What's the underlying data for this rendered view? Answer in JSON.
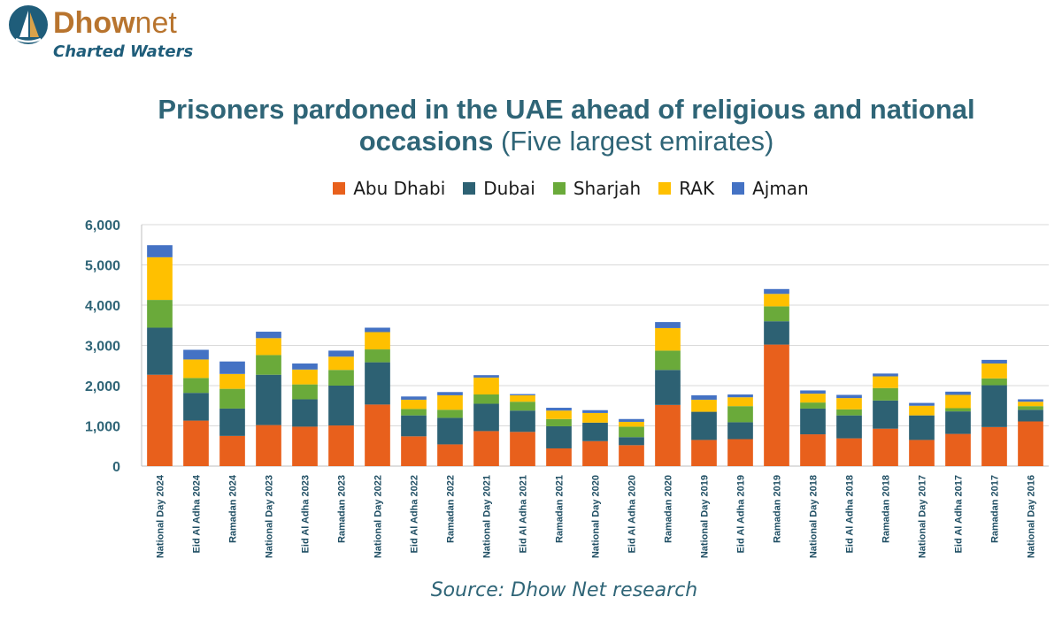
{
  "brand": {
    "name_part1": "Dhow",
    "name_part2": "net",
    "tagline": "Charted Waters",
    "logo_icon": "sail-logo-icon"
  },
  "source": "Source: Dhow Net research",
  "chart_data": {
    "type": "bar",
    "stacked": true,
    "title_bold": "Prisoners pardoned in the UAE ahead of religious and national occasions",
    "title_normal": " (Five largest emirates)",
    "xlabel": "",
    "ylabel": "",
    "ylim": [
      0,
      6000
    ],
    "yticks": [
      0,
      1000,
      2000,
      3000,
      4000,
      5000,
      6000
    ],
    "ytick_labels": [
      "0",
      "1,000",
      "2,000",
      "3,000",
      "4,000",
      "5,000",
      "6,000"
    ],
    "grid": true,
    "legend": "top-center",
    "categories": [
      "National Day 2024",
      "Eid Al Adha 2024",
      "Ramadan 2024",
      "National Day 2023",
      "Eid Al Adha 2023",
      "Ramadan 2023",
      "National Day 2022",
      "Eid Al Adha 2022",
      "Ramadan 2022",
      "National Day 2021",
      "Eid Al Adha 2021",
      "Ramadan 2021",
      "National Day 2020",
      "Eid Al Adha 2020",
      "Ramadan 2020",
      "National Day 2019",
      "Eid Al Adha 2019",
      "Ramadan 2019",
      "National Day 2018",
      "Eid Al Adha 2018",
      "Ramadan 2018",
      "National Day 2017",
      "Eid Al Adha 2017",
      "Ramadan 2017",
      "National Day 2016"
    ],
    "series": [
      {
        "name": "Abu Dhabi",
        "color": "#e8601c",
        "values": [
          2270,
          1130,
          750,
          1020,
          980,
          1010,
          1530,
          740,
          540,
          870,
          850,
          440,
          620,
          520,
          1520,
          650,
          670,
          3020,
          790,
          690,
          930,
          650,
          800,
          970,
          1110
        ]
      },
      {
        "name": "Dubai",
        "color": "#2d6173",
        "values": [
          1170,
          690,
          680,
          1250,
          680,
          990,
          1050,
          520,
          660,
          680,
          530,
          550,
          460,
          200,
          870,
          700,
          420,
          580,
          640,
          570,
          700,
          610,
          560,
          1040,
          290
        ]
      },
      {
        "name": "Sharjah",
        "color": "#6aaa3a",
        "values": [
          690,
          370,
          490,
          490,
          370,
          390,
          320,
          160,
          200,
          230,
          220,
          180,
          0,
          260,
          480,
          0,
          400,
          370,
          150,
          150,
          310,
          0,
          80,
          170,
          90
        ]
      },
      {
        "name": "RAK",
        "color": "#ffc000",
        "values": [
          1060,
          460,
          370,
          420,
          370,
          330,
          430,
          230,
          360,
          420,
          160,
          210,
          240,
          120,
          560,
          300,
          220,
          310,
          220,
          280,
          290,
          240,
          330,
          370,
          110
        ]
      },
      {
        "name": "Ajman",
        "color": "#4472c4",
        "values": [
          300,
          240,
          310,
          160,
          150,
          150,
          110,
          80,
          80,
          60,
          30,
          70,
          70,
          70,
          150,
          110,
          70,
          120,
          80,
          80,
          70,
          70,
          80,
          90,
          60
        ]
      }
    ]
  }
}
